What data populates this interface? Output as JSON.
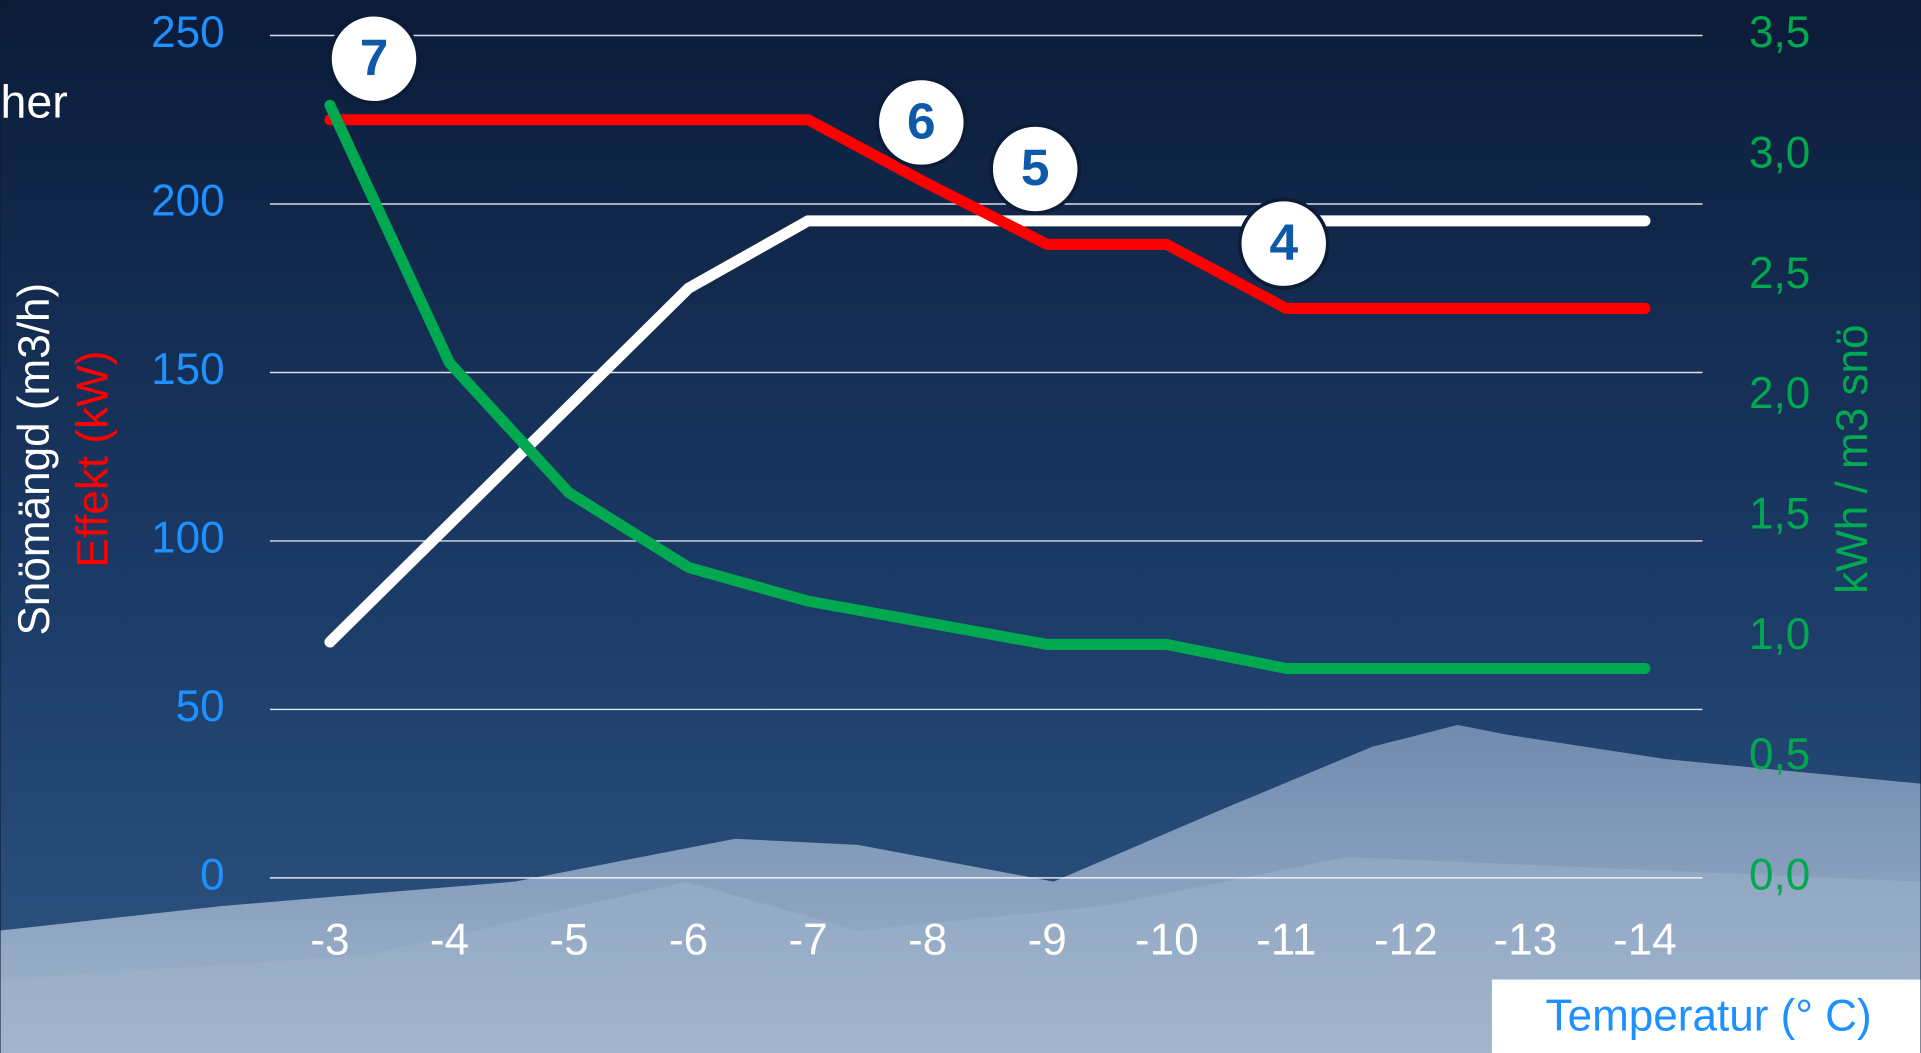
{
  "chart_data": {
    "type": "line",
    "side_text": "her",
    "x_label": "Temperatur (° C)",
    "categories": [
      "-3",
      "-4",
      "-5",
      "-6",
      "-7",
      "-8",
      "-9",
      "-10",
      "-11",
      "-12",
      "-13",
      "-14"
    ],
    "ylim": [
      0,
      250
    ],
    "yticks": [
      0,
      50,
      100,
      150,
      200,
      250
    ],
    "y2lim": [
      0,
      3.5
    ],
    "y2ticks": [
      {
        "value": 0,
        "label": "0,0"
      },
      {
        "value": 0.5,
        "label": "0,5"
      },
      {
        "value": 1,
        "label": "1,0"
      },
      {
        "value": 1.5,
        "label": "1,5"
      },
      {
        "value": 2,
        "label": "2,0"
      },
      {
        "value": 2.5,
        "label": "2,5"
      },
      {
        "value": 3,
        "label": "3,0"
      },
      {
        "value": 3.5,
        "label": "3,5"
      }
    ],
    "grid": true,
    "series": [
      {
        "name": "Snömängd (m3/h)",
        "color": "#ffffff",
        "values": [
          70,
          105,
          140,
          175,
          195,
          195,
          195,
          195,
          195,
          195,
          195,
          195
        ]
      },
      {
        "name": "Effekt (kW)",
        "color": "#ff0000",
        "values": [
          225,
          225,
          225,
          225,
          225,
          206,
          188,
          188,
          169,
          169,
          169,
          169
        ]
      },
      {
        "name": "kWh / m3 snö",
        "color": "#00a84f",
        "axis": "y2",
        "values": [
          3.21,
          2.14,
          1.6,
          1.29,
          1.15,
          1.06,
          0.97,
          0.97,
          0.87,
          0.87,
          0.87,
          0.87
        ]
      }
    ],
    "annotations": [
      "7",
      "6",
      "5",
      "4"
    ]
  }
}
